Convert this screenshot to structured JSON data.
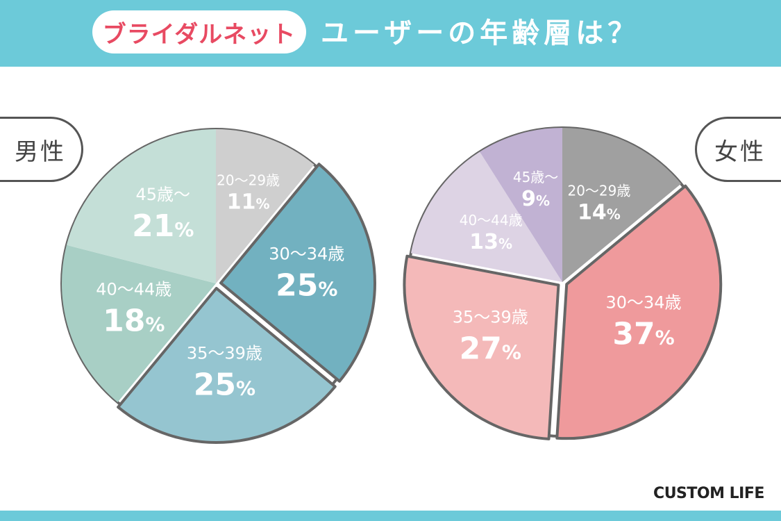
{
  "header": {
    "brand": "ブライダルネット",
    "title": "ユーザーの年齢層は？"
  },
  "chart_data": [
    {
      "type": "pie",
      "title": "男性",
      "slices": [
        {
          "label": "20〜29歳",
          "value": 11,
          "color": "#cfcfcf"
        },
        {
          "label": "30〜34歳",
          "value": 25,
          "color": "#72b1c0"
        },
        {
          "label": "35〜39歳",
          "value": 25,
          "color": "#95c5d0"
        },
        {
          "label": "40〜44歳",
          "value": 18,
          "color": "#a8cfc5"
        },
        {
          "label": "45歳〜",
          "value": 21,
          "color": "#c4dfd7"
        }
      ]
    },
    {
      "type": "pie",
      "title": "女性",
      "slices": [
        {
          "label": "20〜29歳",
          "value": 14,
          "color": "#a0a0a0"
        },
        {
          "label": "30〜34歳",
          "value": 37,
          "color": "#ef9a9c"
        },
        {
          "label": "35〜39歳",
          "value": 27,
          "color": "#f4b9b9"
        },
        {
          "label": "40〜44歳",
          "value": 13,
          "color": "#ddd3e4"
        },
        {
          "label": "45歳〜",
          "value": 9,
          "color": "#c1b2d3"
        }
      ]
    }
  ],
  "footer": {
    "logo": "CUSTOM LIFE"
  }
}
